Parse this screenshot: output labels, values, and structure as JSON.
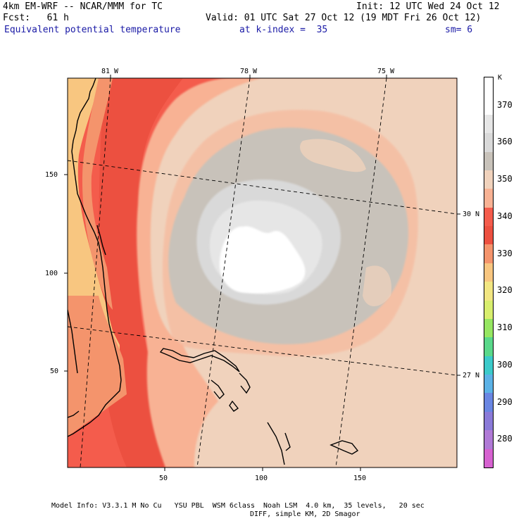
{
  "header": {
    "model": "4km EM-WRF -- NCAR/MMM for TC",
    "init": "Init: 12 UTC Wed 24 Oct 12",
    "forecast": "Fcst:   61 h",
    "valid": "Valid: 01 UTC Sat 27 Oct 12 (19 MDT Fri 26 Oct 12)",
    "field": "Equivalent potential temperature",
    "level": "at k-index =  35",
    "smoothing": "sm= 6"
  },
  "map": {
    "lon_labels": [
      "81 W",
      "78 W",
      "75 W"
    ],
    "lat_labels": [
      "30 N",
      "27 N"
    ],
    "x_ticks": [
      "50",
      "100",
      "150"
    ],
    "y_ticks": [
      "150",
      "100",
      "50"
    ]
  },
  "colorbar": {
    "unit": "K",
    "levels": [
      {
        "label": "",
        "color": "#ffffff"
      },
      {
        "label": "370",
        "color": "#ffffff"
      },
      {
        "label": "",
        "color": "#e6e6e6"
      },
      {
        "label": "360",
        "color": "#d9d9d9"
      },
      {
        "label": "",
        "color": "#c8c2ba"
      },
      {
        "label": "350",
        "color": "#f0d2bc"
      },
      {
        "label": "",
        "color": "#f8b294"
      },
      {
        "label": "340",
        "color": "#f45c4c"
      },
      {
        "label": "",
        "color": "#ec5040"
      },
      {
        "label": "330",
        "color": "#f4946c"
      },
      {
        "label": "",
        "color": "#f8c680"
      },
      {
        "label": "320",
        "color": "#f2e682"
      },
      {
        "label": "",
        "color": "#d8ee6e"
      },
      {
        "label": "310",
        "color": "#96e662"
      },
      {
        "label": "",
        "color": "#5ad88a"
      },
      {
        "label": "300",
        "color": "#3ccaca"
      },
      {
        "label": "",
        "color": "#5cb2e6"
      },
      {
        "label": "290",
        "color": "#6a86e2"
      },
      {
        "label": "",
        "color": "#8a7ad8"
      },
      {
        "label": "280",
        "color": "#b07ad6"
      },
      {
        "label": "",
        "color": "#d662d0"
      }
    ]
  },
  "footer": {
    "line1": "Model Info: V3.3.1 M No Cu   YSU PBL  WSM 6class  Noah LSM  4.0 km,  35 levels,   20 sec",
    "line2": "DIFF, simple KM, 2D Smagor"
  }
}
